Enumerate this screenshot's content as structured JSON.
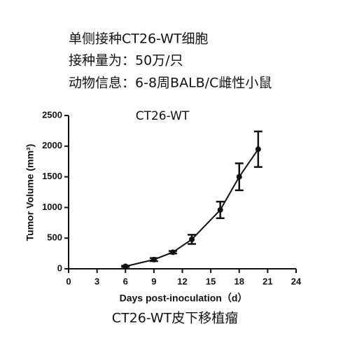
{
  "chart_data": {
    "type": "line",
    "notes": [
      "单侧接种CT26-WT细胞",
      "接种量为：50万/只",
      "动物信息：6-8周BALB/C雌性小鼠"
    ],
    "title": "CT26-WT",
    "x_label": "Days post-inoculation（d）",
    "y_label": "Tumor Volume (mm³)",
    "caption": "CT26-WT皮下移植瘤",
    "x": [
      6,
      9,
      11,
      13,
      16,
      18,
      20
    ],
    "values": [
      40,
      150,
      270,
      480,
      960,
      1500,
      1950
    ],
    "errors": [
      10,
      25,
      20,
      75,
      135,
      220,
      290
    ],
    "color": "#111111",
    "xlim": [
      0,
      24
    ],
    "xticks": [
      0,
      3,
      6,
      9,
      12,
      15,
      18,
      21,
      24
    ],
    "ylim": [
      0,
      2500
    ],
    "yticks": [
      0,
      500,
      1000,
      1500,
      2000,
      2500
    ]
  }
}
